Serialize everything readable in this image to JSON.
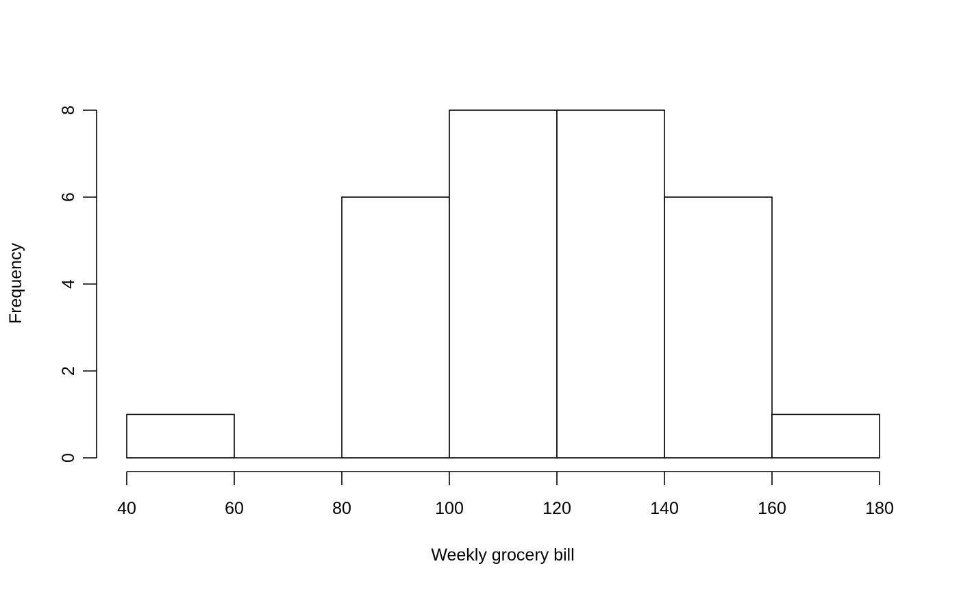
{
  "chart_data": {
    "type": "bar",
    "subtype": "histogram",
    "title": "",
    "xlabel": "Weekly grocery bill",
    "ylabel": "Frequency",
    "bins": [
      {
        "from": 40,
        "to": 60,
        "count": 1
      },
      {
        "from": 60,
        "to": 80,
        "count": 0
      },
      {
        "from": 80,
        "to": 100,
        "count": 6
      },
      {
        "from": 100,
        "to": 120,
        "count": 8
      },
      {
        "from": 120,
        "to": 140,
        "count": 8
      },
      {
        "from": 140,
        "to": 160,
        "count": 6
      },
      {
        "from": 160,
        "to": 180,
        "count": 1
      }
    ],
    "xlim": [
      40,
      180
    ],
    "ylim": [
      0,
      8
    ],
    "x_ticks": [
      40,
      60,
      80,
      100,
      120,
      140,
      160,
      180
    ],
    "y_ticks": [
      0,
      2,
      4,
      6,
      8
    ],
    "grid": false,
    "legend": "none",
    "colors": {
      "bar_fill": "#ffffff",
      "bar_stroke": "#000000",
      "axis": "#000000"
    }
  }
}
